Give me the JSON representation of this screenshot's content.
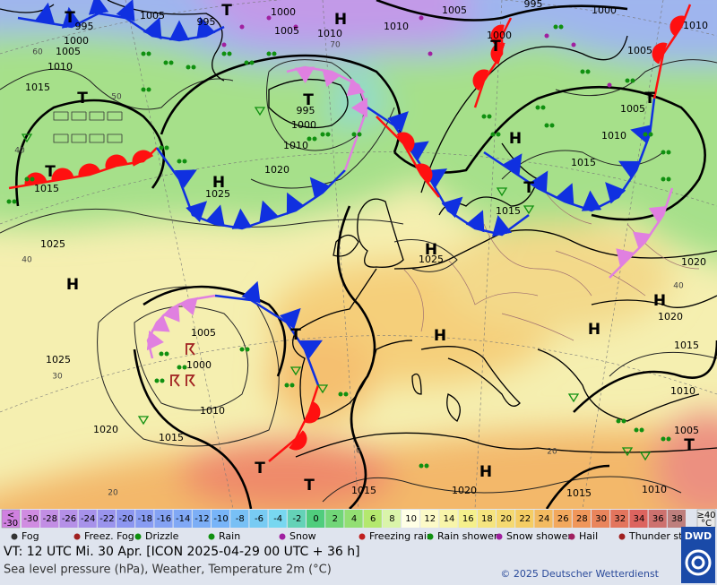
{
  "map": {
    "pressure_labels": [
      "1005",
      "995",
      "1000",
      "1010",
      "1005",
      "1005",
      "1000",
      "995",
      "1010",
      "1015",
      "1015",
      "995",
      "1000",
      "1010",
      "1020",
      "1025",
      "1010",
      "1005",
      "995",
      "1000",
      "1000",
      "1005",
      "1005",
      "1010",
      "1015",
      "1010",
      "1015",
      "1025",
      "1025",
      "1020",
      "1020",
      "1015",
      "1010",
      "1005",
      "1025",
      "1005",
      "1000",
      "1010",
      "1015",
      "1020",
      "1015",
      "1020",
      "1015",
      "1010"
    ],
    "contour_labels": [
      "50",
      "60",
      "40",
      "40",
      "30",
      "20",
      "20",
      "0",
      "70",
      "40"
    ],
    "centers": [
      "H",
      "T",
      "T",
      "T",
      "T",
      "H",
      "T",
      "H",
      "T",
      "T",
      "T",
      "H",
      "H",
      "H",
      "H",
      "H",
      "T",
      "H",
      "T",
      "T",
      "T"
    ]
  },
  "legend": {
    "temp_low": [
      "<",
      "-30"
    ],
    "temp_scale": [
      -30,
      -28,
      -26,
      -24,
      -22,
      -20,
      -18,
      -16,
      -14,
      -12,
      -10,
      -8,
      -6,
      -4,
      -2,
      0,
      2,
      4,
      6,
      8,
      10,
      12,
      14,
      16,
      18,
      20,
      22,
      24,
      26,
      28,
      30,
      32,
      34,
      36,
      38
    ],
    "temp_high": [
      "≥40",
      "°C"
    ],
    "weather": [
      "Fog",
      "Freez. Fog",
      "Drizzle",
      "Rain",
      "Snow",
      "Freezing rain",
      "Rain shower",
      "Snow shower",
      "Hail",
      "Thunder storm"
    ]
  },
  "footer": {
    "valid": "VT: 12 UTC Mi.  30 Apr. [ICON 2025-04-29  00 UTC + 36 h]",
    "product": "Sea level pressure (hPa), Weather, Temperature 2m (°C)",
    "copyright": "© 2025 Deutscher Wetterdienst",
    "logo": "DWD"
  }
}
